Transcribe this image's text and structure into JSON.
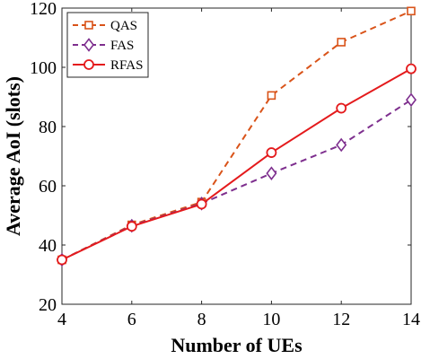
{
  "chart_data": {
    "type": "line",
    "title": "",
    "xlabel": "Number of UEs",
    "ylabel": "Average AoI (slots)",
    "x": [
      4,
      6,
      8,
      10,
      12,
      14
    ],
    "xlim": [
      4,
      14
    ],
    "ylim": [
      20,
      120
    ],
    "xticks": [
      "4",
      "6",
      "8",
      "10",
      "12",
      "14"
    ],
    "yticks": [
      "20",
      "40",
      "60",
      "80",
      "100",
      "120"
    ],
    "grid": false,
    "legend_position": "top-left",
    "series": [
      {
        "name": "QAS",
        "values": [
          35,
          46.8,
          54.5,
          90.5,
          108.5,
          119
        ],
        "color": "#d95319",
        "line_style": "dashed",
        "marker": "square"
      },
      {
        "name": "FAS",
        "values": [
          35,
          46.5,
          54,
          64.2,
          73.8,
          89
        ],
        "color": "#7e2f8e",
        "line_style": "dashed",
        "marker": "diamond"
      },
      {
        "name": "RFAS",
        "values": [
          35,
          46.3,
          53.8,
          71.2,
          86.2,
          99.5
        ],
        "color": "#e41a1c",
        "line_style": "solid",
        "marker": "circle"
      }
    ]
  }
}
